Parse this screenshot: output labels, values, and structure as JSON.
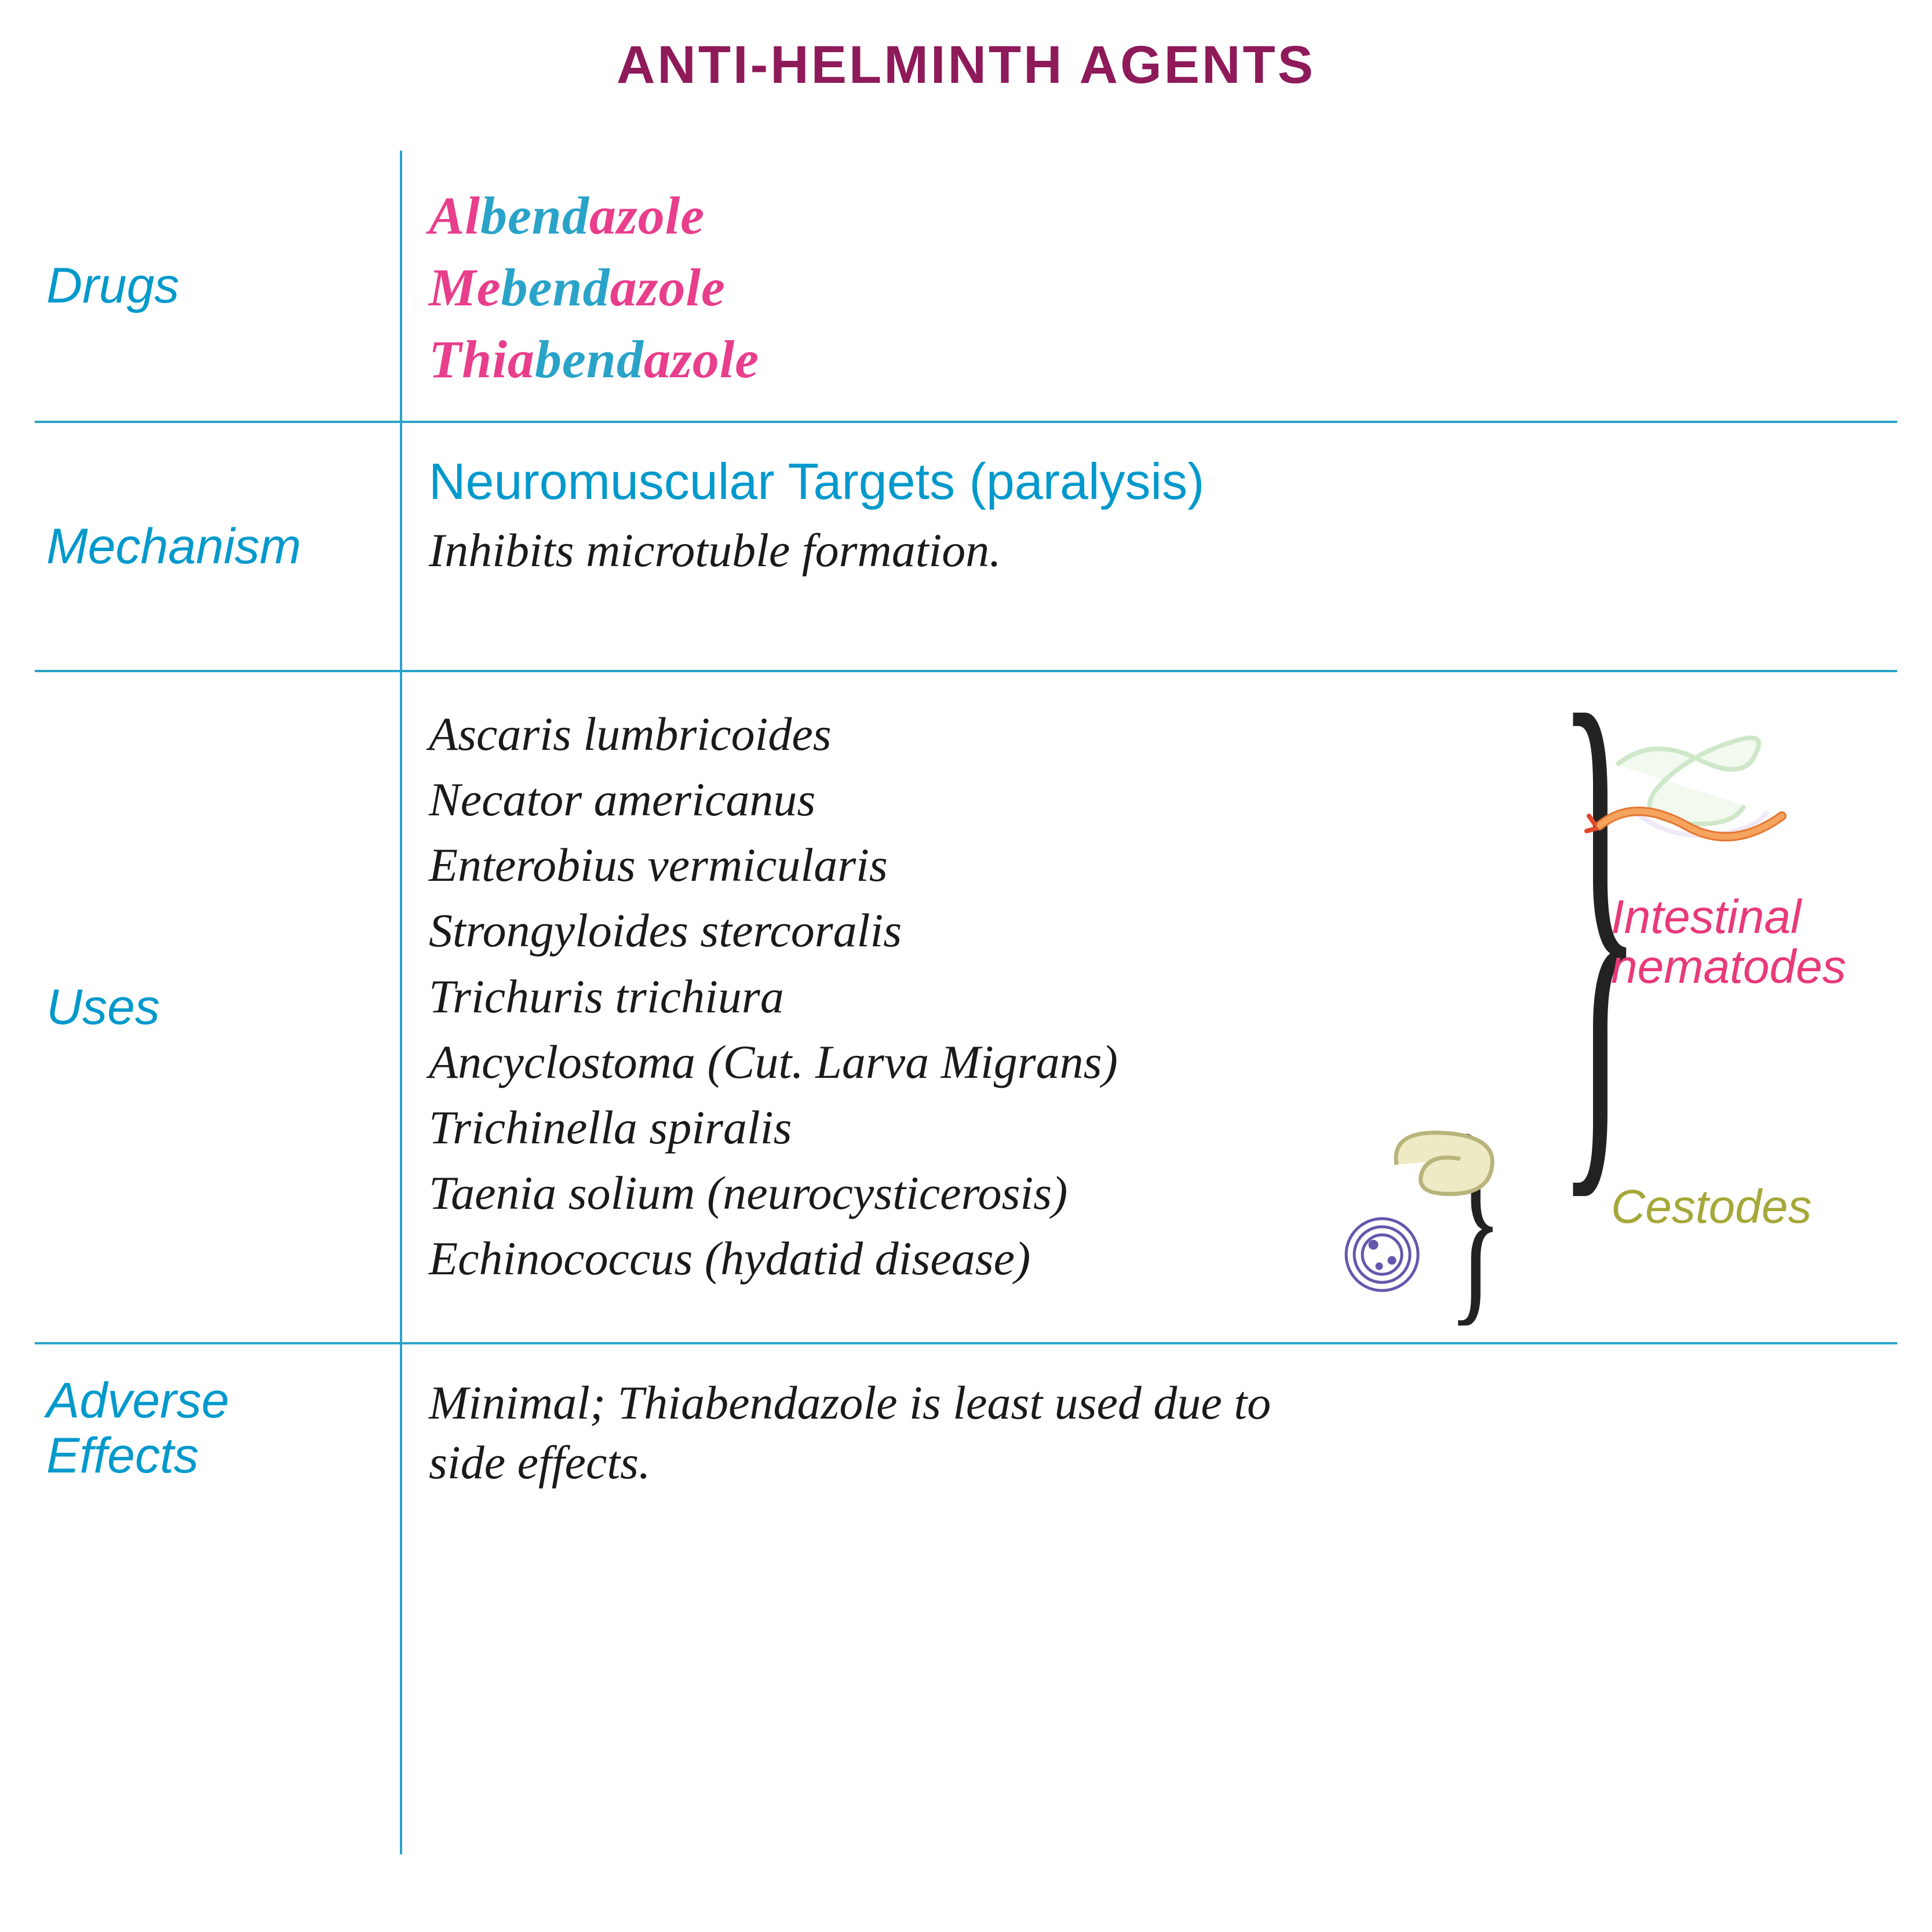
{
  "colors": {
    "title": "#8e1a5a",
    "label": "#0099cc",
    "border": "#2aa3c9",
    "pink": "#e83e8c",
    "blue": "#2aa3c9",
    "body": "#1a1a1a",
    "group_pink": "#e8397a",
    "group_olive": "#a5a838",
    "worm_body": "#f5a45e",
    "worm_outline": "#e57733",
    "intestine": "#c9e8c2",
    "intestine_stroke": "#a8d49e",
    "bean_fill": "#eeeac4",
    "bean_stroke": "#b8b47a",
    "cyst_stroke": "#4a3a9e"
  },
  "title": "ANTI-HELMINTH AGENTS",
  "rows": {
    "drugs": {
      "label": "Drugs",
      "items": [
        {
          "segments": [
            [
              "Al",
              "pink"
            ],
            [
              "bend",
              "blue"
            ],
            [
              "azole",
              "pink"
            ]
          ]
        },
        {
          "segments": [
            [
              "Me",
              "pink"
            ],
            [
              "bend",
              "blue"
            ],
            [
              "azole",
              "pink"
            ]
          ]
        },
        {
          "segments": [
            [
              "Thia",
              "pink"
            ],
            [
              "bend",
              "blue"
            ],
            [
              "azole",
              "pink"
            ]
          ]
        }
      ]
    },
    "mechanism": {
      "label": "Mechanism",
      "heading": "Neuromuscular Targets (paralysis)",
      "body": "Inhibits microtuble formation."
    },
    "uses": {
      "label": "Uses",
      "list": [
        "Ascaris lumbricoides",
        "Necator americanus",
        "Enterobius vermicularis",
        "Strongyloides stercoralis",
        "Trichuris trichiura",
        "Ancyclostoma (Cut. Larva Migrans)",
        "Trichinella spiralis",
        "Taenia solium (neurocysticerosis)",
        "Echinococcus (hydatid disease)"
      ],
      "group1": "Intestinal\nnematodes",
      "group2": "Cestodes"
    },
    "adverse": {
      "label": "Adverse Effects",
      "body": "Minimal; Thiabendazole  is least used due to side effects."
    }
  }
}
